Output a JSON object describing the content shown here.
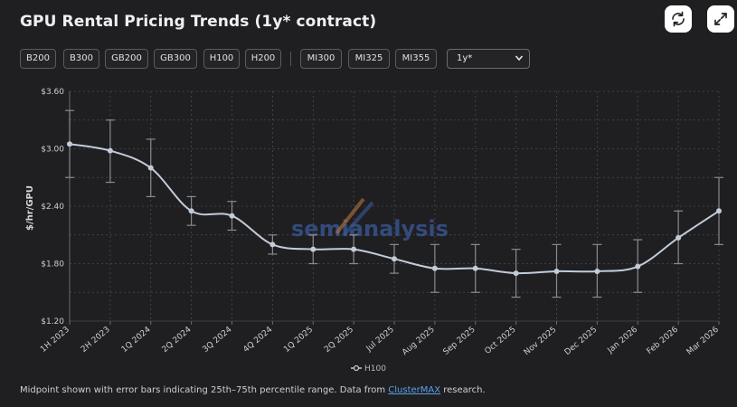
{
  "title": "GPU Rental Pricing Trends (1y* contract)",
  "icons": {
    "refresh": "refresh-icon",
    "expand": "expand-icon"
  },
  "filters": [
    {
      "label": "B200",
      "active": false
    },
    {
      "label": "B300",
      "active": false
    },
    {
      "label": "GB200",
      "active": false
    },
    {
      "label": "GB300",
      "active": false
    },
    {
      "label": "H100",
      "active": true
    },
    {
      "label": "H200",
      "active": false
    },
    {
      "label": "MI300",
      "active": false
    },
    {
      "label": "MI325",
      "active": false
    },
    {
      "label": "MI355",
      "active": false
    }
  ],
  "contract_select": {
    "value": "1y*"
  },
  "colors": {
    "accent": "#a5b3c4",
    "line": "#c2ccd8",
    "grid": "#4a4a50",
    "watermark_blue": "#3a5a9a",
    "watermark_orange": "#b8743a"
  },
  "watermark": "semianalysis",
  "chart_data": {
    "type": "line",
    "x": [
      "1H 2023",
      "2H 2023",
      "1Q 2024",
      "2Q 2024",
      "3Q 2024",
      "4Q 2024",
      "1Q 2025",
      "2Q 2025",
      "Jul 2025",
      "Aug 2025",
      "Sep 2025",
      "Oct 2025",
      "Nov 2025",
      "Dec 2025",
      "Jan 2026",
      "Feb 2026",
      "Mar 2026"
    ],
    "series": [
      {
        "name": "H100",
        "values": [
          3.05,
          2.98,
          2.8,
          2.35,
          2.3,
          2.0,
          1.95,
          1.95,
          1.85,
          1.75,
          1.75,
          1.7,
          1.72,
          1.72,
          1.77,
          2.07,
          2.35
        ],
        "low": [
          2.7,
          2.65,
          2.5,
          2.2,
          2.15,
          1.9,
          1.8,
          1.8,
          1.7,
          1.5,
          1.5,
          1.45,
          1.45,
          1.45,
          1.5,
          1.8,
          2.0
        ],
        "high": [
          3.4,
          3.3,
          3.1,
          2.5,
          2.45,
          2.1,
          2.1,
          2.1,
          2.0,
          2.0,
          2.0,
          1.95,
          2.0,
          2.0,
          2.05,
          2.35,
          2.7
        ]
      }
    ],
    "ylabel": "$/hr/GPU",
    "yticks": [
      "$3.60",
      "$3.00",
      "$2.40",
      "$1.80",
      "$1.20"
    ],
    "ytick_values": [
      3.6,
      3.0,
      2.4,
      1.8,
      1.2
    ],
    "ylim": [
      1.2,
      3.6
    ],
    "grid": true,
    "legend_position": "bottom-center"
  },
  "footer": {
    "text_before": "Midpoint shown with error bars indicating 25th–75th percentile range. Data from ",
    "link": "ClusterMAX",
    "text_after": " research."
  }
}
